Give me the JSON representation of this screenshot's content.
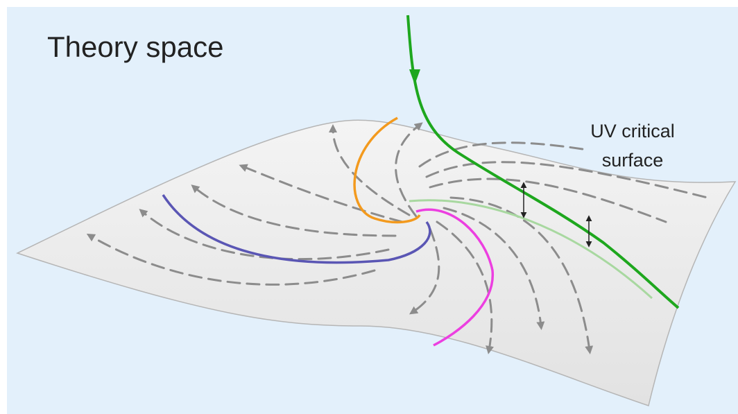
{
  "labels": {
    "title": "Theory space",
    "surface_label": [
      "UV critical",
      "surface"
    ]
  }
}
